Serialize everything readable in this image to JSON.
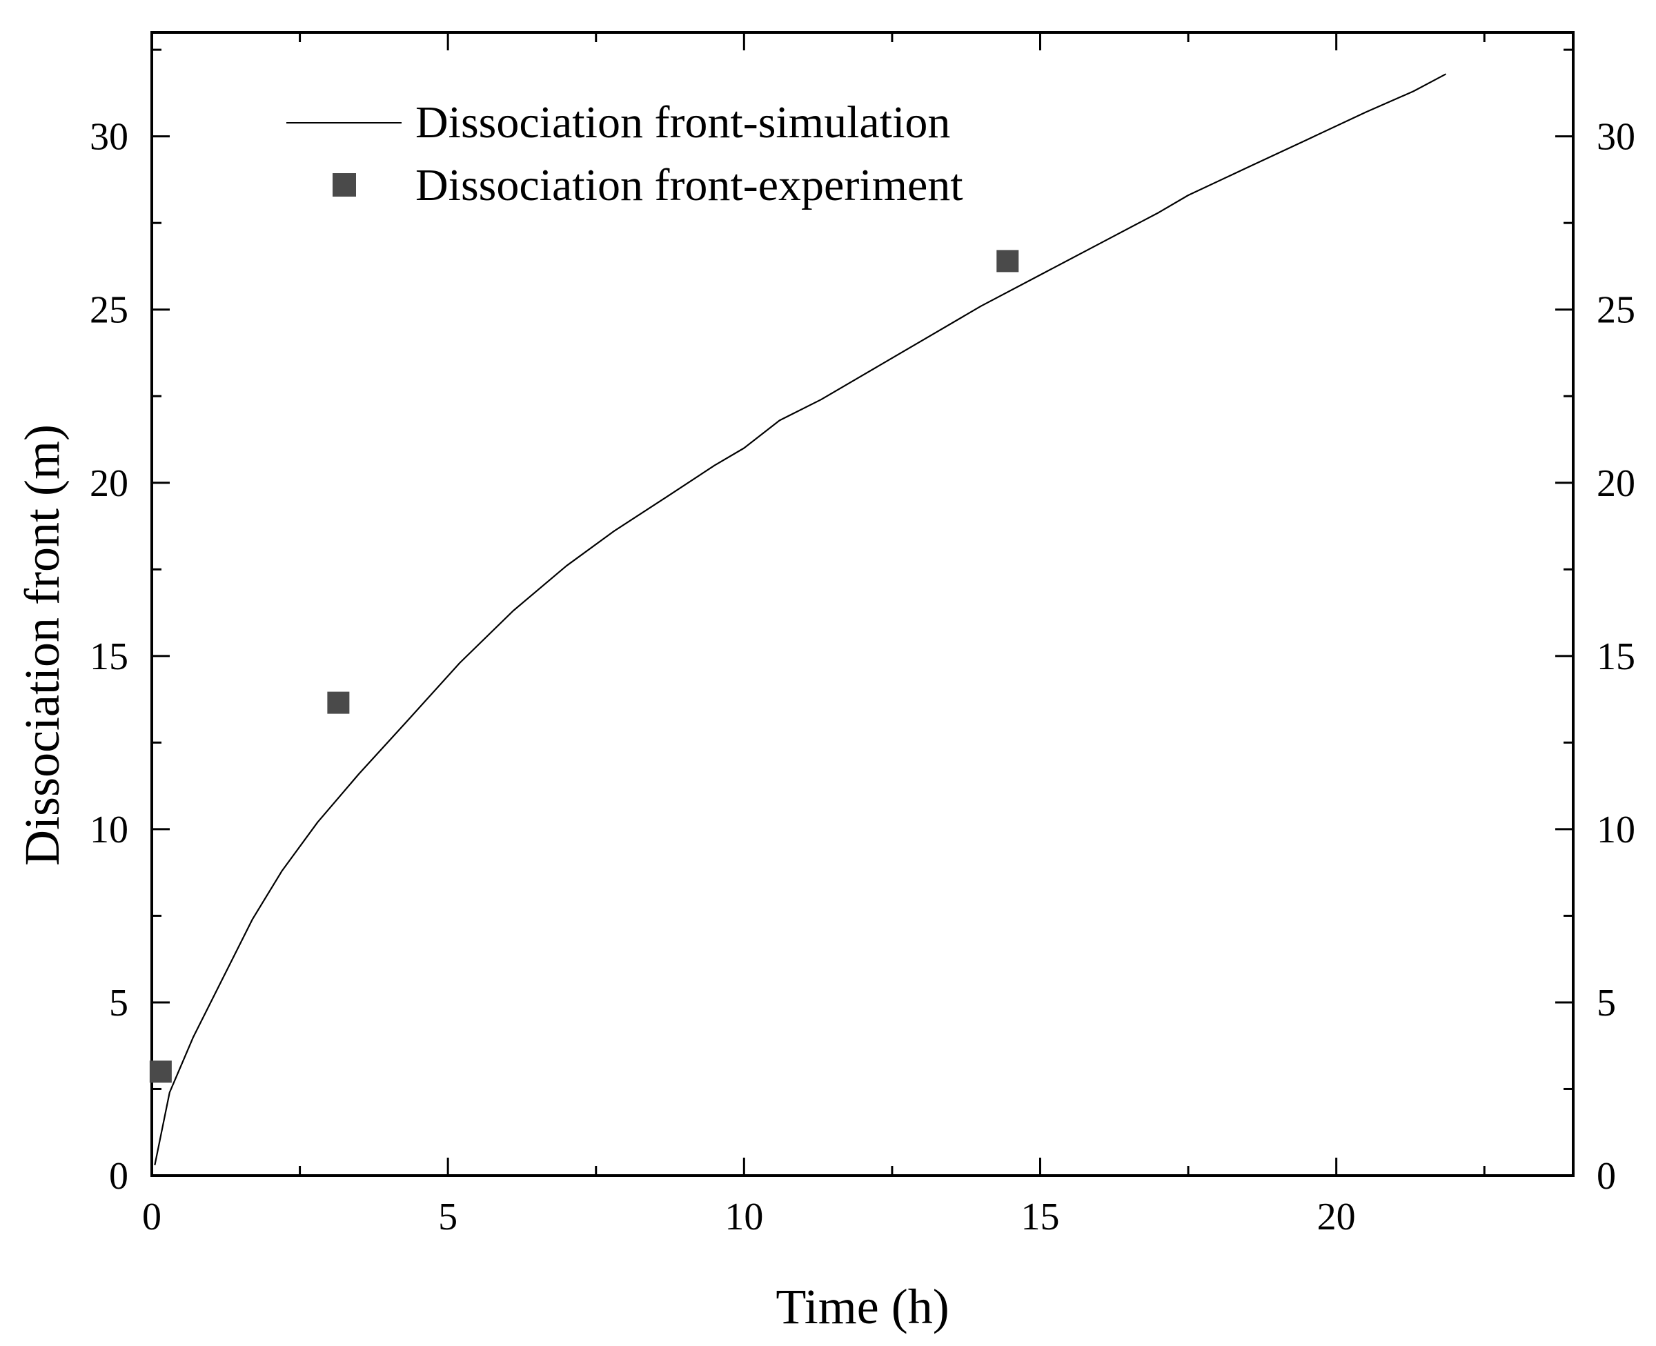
{
  "chart_data": {
    "type": "line",
    "title": "",
    "xlabel": "Time (h)",
    "ylabel": "Dissociation front (m)",
    "xlim": [
      0,
      24
    ],
    "ylim": [
      0,
      33
    ],
    "x_ticks": [
      0,
      5,
      10,
      15,
      20
    ],
    "y_ticks": [
      0,
      5,
      10,
      15,
      20,
      25,
      30
    ],
    "x_tick_labels": [
      "0",
      "5",
      "10",
      "15",
      "20"
    ],
    "y_tick_labels": [
      "0",
      "5",
      "10",
      "15",
      "20",
      "25",
      "30"
    ],
    "right_axis_tick_labels": [
      "0",
      "5",
      "10",
      "15",
      "20",
      "25",
      "30"
    ],
    "grid": false,
    "legend_position": "top-left",
    "series": [
      {
        "name": "Dissociation front-simulation",
        "type": "line",
        "color": "#000000",
        "x": [
          0.05,
          0.3,
          0.7,
          1.2,
          1.7,
          2.2,
          2.8,
          3.5,
          4.3,
          5.2,
          6.1,
          7.0,
          7.8,
          8.7,
          9.5,
          10.0,
          10.6,
          11.3,
          12.0,
          13.0,
          14.0,
          15.0,
          16.0,
          17.0,
          17.5,
          18.5,
          19.5,
          20.5,
          21.3,
          21.85
        ],
        "y": [
          0.3,
          2.4,
          4.0,
          5.7,
          7.4,
          8.8,
          10.2,
          11.6,
          13.1,
          14.8,
          16.3,
          17.6,
          18.6,
          19.6,
          20.5,
          21.0,
          21.8,
          22.4,
          23.1,
          24.1,
          25.1,
          26.0,
          26.9,
          27.8,
          28.3,
          29.1,
          29.9,
          30.7,
          31.3,
          31.8
        ]
      },
      {
        "name": "Dissociation front-experiment",
        "type": "scatter",
        "marker": "square",
        "color": "#4a4a4a",
        "x": [
          0.15,
          3.15,
          14.45
        ],
        "y": [
          3.0,
          13.65,
          26.4
        ]
      }
    ]
  }
}
